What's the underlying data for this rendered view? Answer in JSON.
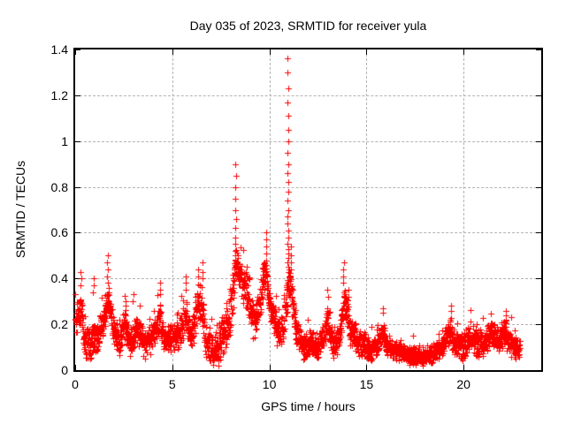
{
  "chart_data": {
    "type": "scatter",
    "title": "Day 035 of 2023, SRMTID for receiver yula",
    "xlabel": "GPS time / hours",
    "ylabel": "SRMTID / TECUs",
    "xlim": [
      0,
      24
    ],
    "ylim": [
      0,
      1.4
    ],
    "xticks": [
      0,
      5,
      10,
      15,
      20
    ],
    "yticks": [
      0,
      0.2,
      0.4,
      0.6,
      0.8,
      1,
      1.2,
      1.4
    ],
    "grid": "dashed",
    "legend_position": "none",
    "marker": {
      "symbol": "+",
      "color": "#ff0000",
      "size": 7
    },
    "axis_color": "#000000",
    "grid_color": "#b4b4b4",
    "background": "#ffffff",
    "series": [
      {
        "name": "SRMTID",
        "t_start": 0,
        "t_end": 22.9,
        "sample_step_hours": 0.008,
        "baseline_profile": [
          [
            0.0,
            0.2
          ],
          [
            0.15,
            0.24
          ],
          [
            0.3,
            0.3
          ],
          [
            0.45,
            0.14
          ],
          [
            0.6,
            0.1
          ],
          [
            0.8,
            0.12
          ],
          [
            1.0,
            0.16
          ],
          [
            1.15,
            0.13
          ],
          [
            1.3,
            0.18
          ],
          [
            1.5,
            0.22
          ],
          [
            1.65,
            0.3
          ],
          [
            1.8,
            0.28
          ],
          [
            1.95,
            0.18
          ],
          [
            2.1,
            0.14
          ],
          [
            2.25,
            0.12
          ],
          [
            2.4,
            0.16
          ],
          [
            2.55,
            0.2
          ],
          [
            2.7,
            0.16
          ],
          [
            2.85,
            0.12
          ],
          [
            3.0,
            0.16
          ],
          [
            3.2,
            0.18
          ],
          [
            3.4,
            0.15
          ],
          [
            3.6,
            0.11
          ],
          [
            3.8,
            0.13
          ],
          [
            4.0,
            0.15
          ],
          [
            4.2,
            0.2
          ],
          [
            4.35,
            0.24
          ],
          [
            4.5,
            0.16
          ],
          [
            4.7,
            0.12
          ],
          [
            4.9,
            0.14
          ],
          [
            5.1,
            0.16
          ],
          [
            5.3,
            0.14
          ],
          [
            5.5,
            0.18
          ],
          [
            5.7,
            0.26
          ],
          [
            5.9,
            0.16
          ],
          [
            6.1,
            0.18
          ],
          [
            6.3,
            0.28
          ],
          [
            6.5,
            0.3
          ],
          [
            6.7,
            0.14
          ],
          [
            6.9,
            0.1
          ],
          [
            7.1,
            0.09
          ],
          [
            7.3,
            0.11
          ],
          [
            7.5,
            0.13
          ],
          [
            7.7,
            0.16
          ],
          [
            7.9,
            0.22
          ],
          [
            8.05,
            0.3
          ],
          [
            8.2,
            0.42
          ],
          [
            8.35,
            0.45
          ],
          [
            8.5,
            0.42
          ],
          [
            8.7,
            0.38
          ],
          [
            8.9,
            0.3
          ],
          [
            9.1,
            0.22
          ],
          [
            9.3,
            0.22
          ],
          [
            9.5,
            0.28
          ],
          [
            9.65,
            0.38
          ],
          [
            9.8,
            0.45
          ],
          [
            9.95,
            0.32
          ],
          [
            10.1,
            0.26
          ],
          [
            10.3,
            0.2
          ],
          [
            10.5,
            0.15
          ],
          [
            10.7,
            0.18
          ],
          [
            10.85,
            0.28
          ],
          [
            11.0,
            0.38
          ],
          [
            11.1,
            0.4
          ],
          [
            11.25,
            0.24
          ],
          [
            11.4,
            0.15
          ],
          [
            11.6,
            0.12
          ],
          [
            11.8,
            0.11
          ],
          [
            12.0,
            0.1
          ],
          [
            12.2,
            0.12
          ],
          [
            12.4,
            0.1
          ],
          [
            12.6,
            0.11
          ],
          [
            12.8,
            0.14
          ],
          [
            13.0,
            0.22
          ],
          [
            13.15,
            0.15
          ],
          [
            13.3,
            0.11
          ],
          [
            13.5,
            0.13
          ],
          [
            13.7,
            0.2
          ],
          [
            13.85,
            0.3
          ],
          [
            14.0,
            0.26
          ],
          [
            14.15,
            0.18
          ],
          [
            14.3,
            0.15
          ],
          [
            14.5,
            0.13
          ],
          [
            14.7,
            0.11
          ],
          [
            14.9,
            0.1
          ],
          [
            15.1,
            0.09
          ],
          [
            15.3,
            0.09
          ],
          [
            15.5,
            0.1
          ],
          [
            15.7,
            0.14
          ],
          [
            15.85,
            0.17
          ],
          [
            16.0,
            0.11
          ],
          [
            16.2,
            0.09
          ],
          [
            16.5,
            0.08
          ],
          [
            16.8,
            0.08
          ],
          [
            17.1,
            0.07
          ],
          [
            17.4,
            0.06
          ],
          [
            17.7,
            0.06
          ],
          [
            18.0,
            0.06
          ],
          [
            18.3,
            0.07
          ],
          [
            18.6,
            0.08
          ],
          [
            18.9,
            0.1
          ],
          [
            19.1,
            0.14
          ],
          [
            19.3,
            0.18
          ],
          [
            19.5,
            0.12
          ],
          [
            19.7,
            0.1
          ],
          [
            20.0,
            0.1
          ],
          [
            20.2,
            0.13
          ],
          [
            20.4,
            0.15
          ],
          [
            20.6,
            0.13
          ],
          [
            20.8,
            0.1
          ],
          [
            21.0,
            0.11
          ],
          [
            21.2,
            0.14
          ],
          [
            21.4,
            0.16
          ],
          [
            21.6,
            0.14
          ],
          [
            21.8,
            0.13
          ],
          [
            22.0,
            0.15
          ],
          [
            22.15,
            0.18
          ],
          [
            22.3,
            0.13
          ],
          [
            22.5,
            0.1
          ],
          [
            22.7,
            0.09
          ],
          [
            22.9,
            0.09
          ]
        ],
        "noise_spread": [
          [
            0,
            0.05
          ],
          [
            2,
            0.05
          ],
          [
            4,
            0.045
          ],
          [
            6,
            0.05
          ],
          [
            8,
            0.07
          ],
          [
            9,
            0.06
          ],
          [
            10,
            0.05
          ],
          [
            11,
            0.06
          ],
          [
            12,
            0.04
          ],
          [
            14,
            0.05
          ],
          [
            15,
            0.035
          ],
          [
            17,
            0.03
          ],
          [
            18.5,
            0.03
          ],
          [
            19.5,
            0.045
          ],
          [
            21,
            0.045
          ],
          [
            22.9,
            0.04
          ]
        ],
        "spike_columns": [
          {
            "t": 0.28,
            "values": [
              0.43,
              0.4,
              0.37
            ]
          },
          {
            "t": 0.95,
            "values": [
              0.4,
              0.37,
              0.34
            ]
          },
          {
            "t": 1.68,
            "values": [
              0.5,
              0.47,
              0.44,
              0.41,
              0.38
            ]
          },
          {
            "t": 2.6,
            "values": [
              0.3,
              0.28
            ]
          },
          {
            "t": 3.0,
            "values": [
              0.33,
              0.3
            ]
          },
          {
            "t": 3.3,
            "values": [
              0.28
            ]
          },
          {
            "t": 4.35,
            "values": [
              0.38,
              0.35,
              0.33
            ]
          },
          {
            "t": 5.68,
            "values": [
              0.41,
              0.38,
              0.35
            ]
          },
          {
            "t": 6.35,
            "values": [
              0.44,
              0.41
            ]
          },
          {
            "t": 6.55,
            "values": [
              0.47,
              0.43,
              0.4
            ]
          },
          {
            "t": 8.25,
            "values": [
              0.9,
              0.85,
              0.8,
              0.75,
              0.7,
              0.66,
              0.62,
              0.58,
              0.55,
              0.52,
              0.5,
              0.48,
              0.46
            ]
          },
          {
            "t": 9.82,
            "values": [
              0.6,
              0.57,
              0.54,
              0.51,
              0.48
            ]
          },
          {
            "t": 10.95,
            "values": [
              1.36,
              1.3,
              1.23,
              1.17,
              1.11,
              1.05,
              1.0,
              0.95,
              0.9,
              0.86,
              0.82,
              0.78,
              0.74,
              0.7,
              0.67,
              0.64,
              0.61,
              0.58,
              0.55,
              0.53,
              0.51,
              0.49,
              0.47,
              0.45
            ]
          },
          {
            "t": 11.1,
            "values": [
              0.5,
              0.47,
              0.44,
              0.41
            ]
          },
          {
            "t": 12.0,
            "values": [
              0.22
            ]
          },
          {
            "t": 13.0,
            "values": [
              0.35,
              0.32
            ]
          },
          {
            "t": 13.82,
            "values": [
              0.47,
              0.44,
              0.41,
              0.38
            ]
          },
          {
            "t": 14.05,
            "values": [
              0.35,
              0.32
            ]
          },
          {
            "t": 15.85,
            "values": [
              0.27,
              0.25
            ]
          },
          {
            "t": 19.35,
            "values": [
              0.28,
              0.26
            ]
          },
          {
            "t": 22.2,
            "values": [
              0.26,
              0.24,
              0.22
            ]
          }
        ]
      }
    ]
  }
}
